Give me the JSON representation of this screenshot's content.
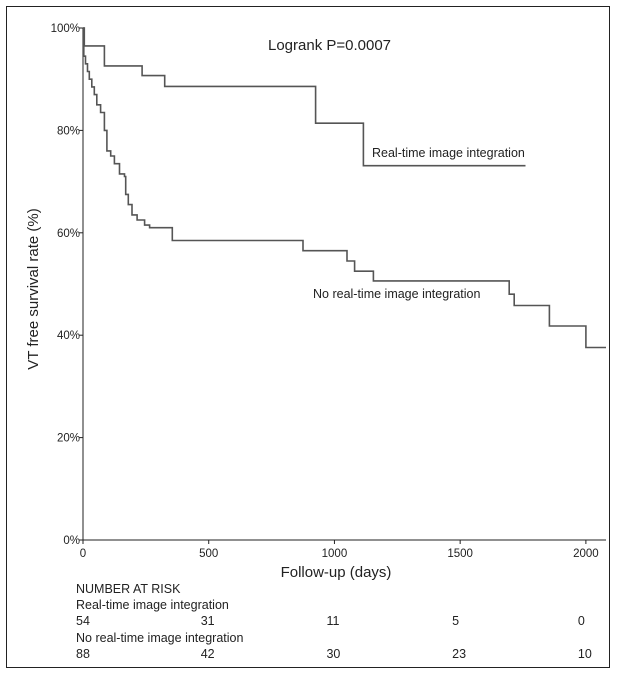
{
  "chart_data": {
    "type": "line",
    "subtype": "kaplan-meier step",
    "annotation": "Logrank P=0.0007",
    "xlabel": "Follow-up (days)",
    "ylabel": "VT free survival rate (%)",
    "xlim": [
      0,
      2080
    ],
    "ylim": [
      0,
      100
    ],
    "x_ticks": [
      0,
      500,
      1000,
      1500,
      2000
    ],
    "y_tick_labels": [
      "0%",
      "20%",
      "40%",
      "60%",
      "80%",
      "100%"
    ],
    "y_ticks": [
      0,
      20,
      40,
      60,
      80,
      100
    ],
    "color": "#555555",
    "series": [
      {
        "name": "Real-time image integration",
        "points": [
          [
            0,
            100
          ],
          [
            5,
            96.5
          ],
          [
            80,
            96.5
          ],
          [
            85,
            92.6
          ],
          [
            230,
            92.6
          ],
          [
            235,
            90.7
          ],
          [
            320,
            90.7
          ],
          [
            325,
            88.6
          ],
          [
            920,
            88.6
          ],
          [
            925,
            81.4
          ],
          [
            1110,
            81.4
          ],
          [
            1115,
            73.1
          ],
          [
            1760,
            73.1
          ]
        ]
      },
      {
        "name": "No real-time image integration",
        "points": [
          [
            0,
            100
          ],
          [
            3,
            94.5
          ],
          [
            10,
            93
          ],
          [
            18,
            91.5
          ],
          [
            25,
            90
          ],
          [
            35,
            88.5
          ],
          [
            45,
            87
          ],
          [
            55,
            85
          ],
          [
            70,
            83.5
          ],
          [
            85,
            80
          ],
          [
            95,
            76
          ],
          [
            110,
            75
          ],
          [
            125,
            73.5
          ],
          [
            145,
            71.5
          ],
          [
            165,
            71
          ],
          [
            170,
            67.5
          ],
          [
            180,
            65.5
          ],
          [
            195,
            63.5
          ],
          [
            215,
            62.5
          ],
          [
            245,
            61.5
          ],
          [
            265,
            61
          ],
          [
            350,
            61
          ],
          [
            355,
            58.5
          ],
          [
            870,
            58.5
          ],
          [
            875,
            56.5
          ],
          [
            1045,
            56.5
          ],
          [
            1050,
            54.5
          ],
          [
            1075,
            54.5
          ],
          [
            1080,
            52.5
          ],
          [
            1150,
            52.5
          ],
          [
            1155,
            50.6
          ],
          [
            1690,
            50.6
          ],
          [
            1695,
            48
          ],
          [
            1710,
            48
          ],
          [
            1715,
            45.8
          ],
          [
            1850,
            45.8
          ],
          [
            1855,
            41.8
          ],
          [
            1995,
            41.8
          ],
          [
            2000,
            37.6
          ],
          [
            2080,
            37.6
          ]
        ]
      }
    ]
  },
  "risk_table": {
    "heading": "NUMBER AT RISK",
    "groups": [
      {
        "label": "Real-time image integration",
        "values": [
          "54",
          "31",
          "11",
          "5",
          "0"
        ]
      },
      {
        "label": "No real-time image integration",
        "values": [
          "88",
          "42",
          "30",
          "23",
          "10"
        ]
      }
    ]
  }
}
